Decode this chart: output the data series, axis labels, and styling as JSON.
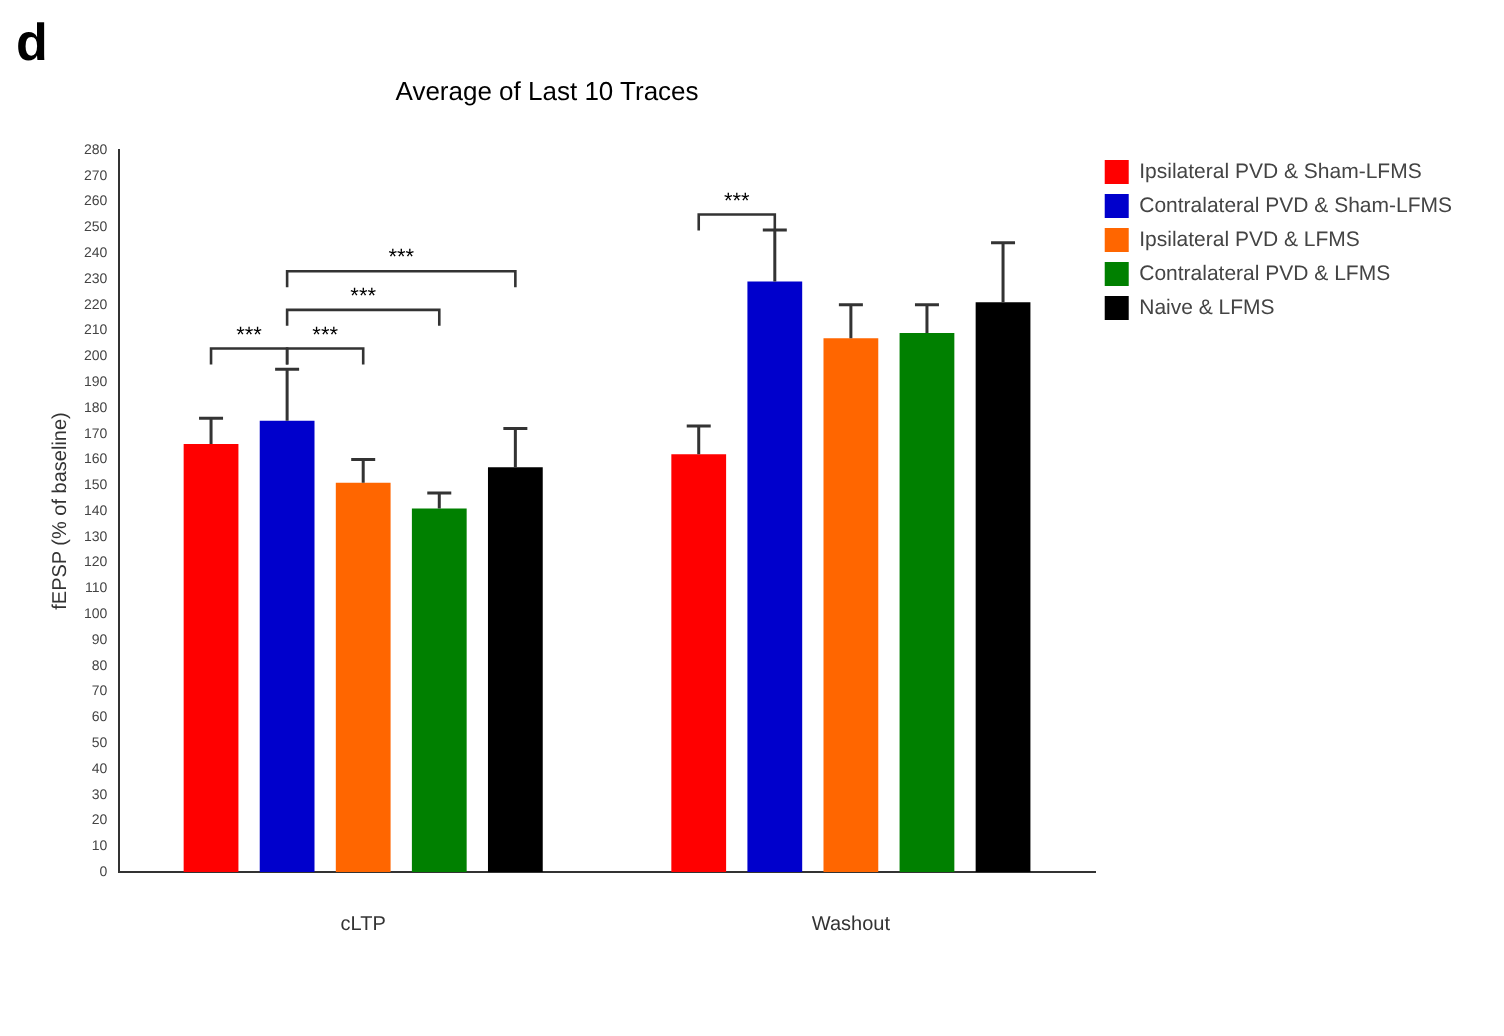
{
  "chart_data": {
    "type": "bar",
    "title": "Average of Last 10 Traces",
    "ylabel": "fEPSP (% of baseline)",
    "annotations": [
      "d",
      "***",
      "***",
      "***",
      "***",
      "***"
    ],
    "categories": [
      "cLTP",
      "Washout"
    ],
    "series": [
      {
        "name": "Ipsilateral PVD & Sham-LFMS",
        "color": "#ff0000",
        "values": [
          166,
          162
        ],
        "errors": [
          [
            166,
            176
          ],
          [
            162,
            173
          ]
        ]
      },
      {
        "name": "Contralateral PVD & Sham-LFMS",
        "color": "#0000cc",
        "values": [
          175,
          229
        ],
        "errors": [
          [
            175,
            195
          ],
          [
            229,
            249
          ]
        ]
      },
      {
        "name": "Ipsilateral PVD & LFMS",
        "color": "#ff6600",
        "values": [
          151,
          207
        ],
        "errors": [
          [
            151,
            160
          ],
          [
            207,
            220
          ]
        ]
      },
      {
        "name": "Contralateral PVD & LFMS",
        "color": "#008000",
        "values": [
          141,
          209
        ],
        "errors": [
          [
            141,
            147
          ],
          [
            209,
            220
          ]
        ]
      },
      {
        "name": "Naive & LFMS",
        "color": "#000000",
        "values": [
          157,
          221
        ],
        "errors": [
          [
            157,
            172
          ],
          [
            221,
            244
          ]
        ]
      }
    ],
    "ylim": [
      0,
      280
    ],
    "yticks": [
      0,
      10,
      20,
      30,
      40,
      50,
      60,
      70,
      80,
      90,
      100,
      110,
      120,
      130,
      140,
      150,
      160,
      170,
      180,
      190,
      200,
      210,
      220,
      230,
      240,
      250,
      260,
      270,
      280
    ],
    "grid": false,
    "legend": "top right"
  }
}
